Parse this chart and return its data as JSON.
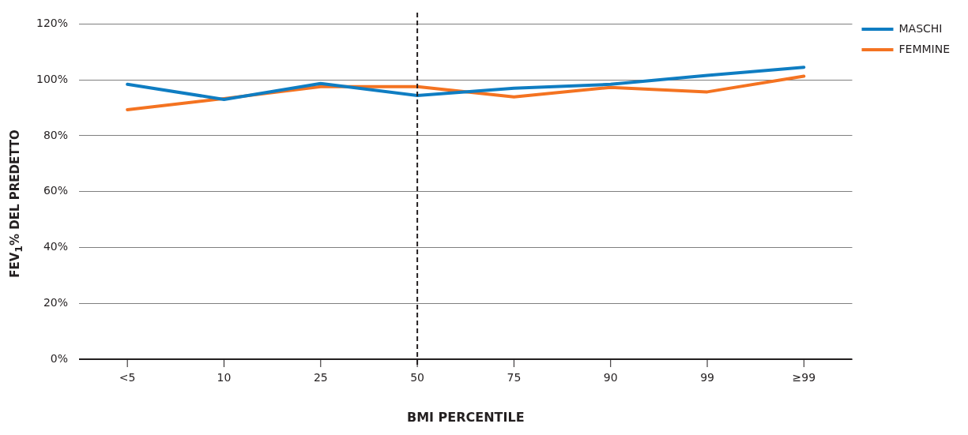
{
  "chart_data": {
    "type": "line",
    "xlabel": "BMI PERCENTILE",
    "ylabel": "FEV$_{1}$% DEL PREDETTO",
    "categories": [
      "<5",
      "10",
      "25",
      "50",
      "75",
      "90",
      "99",
      "≥99"
    ],
    "series": [
      {
        "name": "MASCHI",
        "color": "#0f7dc2",
        "values": [
          98.4,
          93,
          98.7,
          94.4,
          97,
          98.4,
          101.6,
          104.5
        ]
      },
      {
        "name": "FEMMINE",
        "color": "#f47321",
        "values": [
          89.3,
          93.3,
          97.6,
          97.6,
          93.9,
          97.3,
          95.7,
          101.3
        ]
      }
    ],
    "ylim": [
      0,
      120
    ],
    "yticks": [
      {
        "value": 0,
        "label": "0%"
      },
      {
        "value": 20,
        "label": "20%"
      },
      {
        "value": 40,
        "label": "40%"
      },
      {
        "value": 60,
        "label": "60%"
      },
      {
        "value": 80,
        "label": "80%"
      },
      {
        "value": 100,
        "label": "100%"
      },
      {
        "value": 120,
        "label": "120%"
      }
    ],
    "ref_lines": [
      {
        "axis": "x",
        "value": "50",
        "color": "#231f20",
        "line_style": "dashed"
      }
    ],
    "grid": "y",
    "legend": "top right",
    "marker": "none",
    "line_style": "solid"
  }
}
